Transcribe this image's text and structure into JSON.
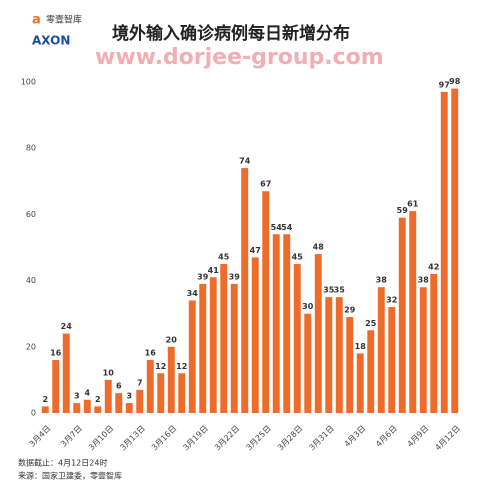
{
  "chart_data": {
    "type": "bar",
    "title": "境外输入确诊病例每日新增分布",
    "brand": "零壹智库",
    "logo": "AXON",
    "watermark": "www.dorjee-group.com",
    "notes": [
      "数据截止：4月12日24时",
      "来源：国家卫建委，零壹智库"
    ],
    "categories": [
      "3月4日",
      null,
      null,
      "3月7日",
      null,
      null,
      "3月10日",
      null,
      null,
      "3月13日",
      null,
      null,
      "3月16日",
      null,
      null,
      "3月19日",
      null,
      null,
      "3月22日",
      null,
      null,
      "3月25日",
      null,
      null,
      "3月28日",
      null,
      null,
      "3月31日",
      null,
      null,
      "4月3日",
      null,
      null,
      "4月6日",
      null,
      null,
      "4月9日",
      null,
      null,
      "4月12日"
    ],
    "values": [
      2,
      16,
      24,
      3,
      4,
      2,
      10,
      6,
      3,
      7,
      16,
      12,
      20,
      12,
      34,
      39,
      41,
      45,
      39,
      74,
      47,
      67,
      54,
      54,
      45,
      30,
      48,
      35,
      35,
      29,
      18,
      25,
      38,
      32,
      59,
      61,
      38,
      42,
      97,
      98
    ],
    "color": "#ee6c2b",
    "ylim": [
      0,
      100
    ],
    "yticks": [
      0,
      20,
      40,
      60,
      80,
      100
    ],
    "grid": false
  }
}
